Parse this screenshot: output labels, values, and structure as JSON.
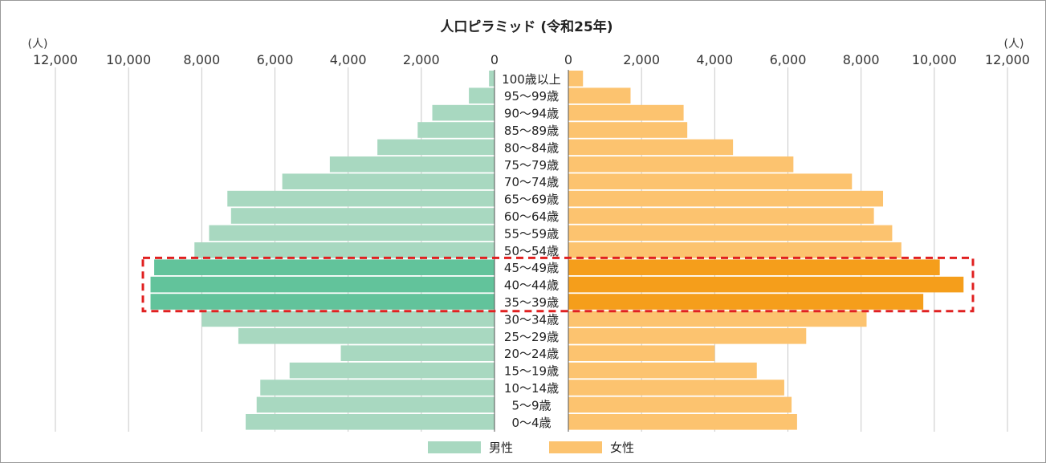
{
  "chart_data": {
    "type": "bar",
    "title": "人口ピラミッド (令和25年)",
    "unit_label_left": "(人)",
    "unit_label_right": "(人)",
    "left_ticks": [
      "12,000",
      "10,000",
      "8,000",
      "6,000",
      "4,000",
      "2,000",
      "0"
    ],
    "right_ticks": [
      "0",
      "2,000",
      "4,000",
      "6,000",
      "8,000",
      "10,000",
      "12,000"
    ],
    "xlim": [
      0,
      12000
    ],
    "grid": true,
    "legend_position": "bottom-center",
    "categories": [
      "100歳以上",
      "95〜99歳",
      "90〜94歳",
      "85〜89歳",
      "80〜84歳",
      "75〜79歳",
      "70〜74歳",
      "65〜69歳",
      "60〜64歳",
      "55〜59歳",
      "50〜54歳",
      "45〜49歳",
      "40〜44歳",
      "35〜39歳",
      "30〜34歳",
      "25〜29歳",
      "20〜24歳",
      "15〜19歳",
      "10〜14歳",
      "5〜9歳",
      "0〜4歳"
    ],
    "series": [
      {
        "name": "男性",
        "side": "left",
        "color": "#a8d8c0",
        "highlight_color": "#62c39b",
        "values": [
          150,
          700,
          1700,
          2100,
          3200,
          4500,
          5800,
          7300,
          7200,
          7800,
          8200,
          9300,
          9400,
          9400,
          8000,
          7000,
          4200,
          5600,
          6400,
          6500,
          6800
        ]
      },
      {
        "name": "女性",
        "side": "right",
        "color": "#fcc36f",
        "highlight_color": "#f59e1b",
        "values": [
          400,
          1700,
          3150,
          3250,
          4500,
          6150,
          7750,
          8600,
          8350,
          8850,
          9100,
          10150,
          10800,
          9700,
          8150,
          6500,
          4000,
          5150,
          5900,
          6100,
          6250
        ]
      }
    ],
    "highlighted_categories": [
      "45〜49歳",
      "40〜44歳",
      "35〜39歳"
    ],
    "highlight_box_color": "#e02020"
  }
}
